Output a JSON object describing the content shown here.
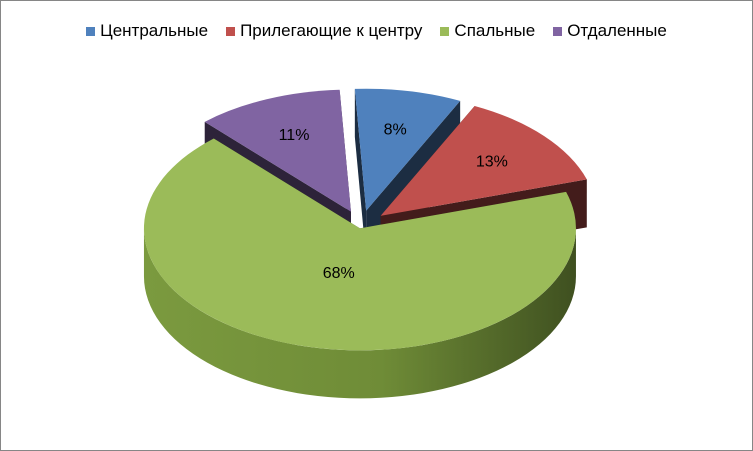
{
  "chart_data": {
    "type": "pie",
    "style": "3d-exploded",
    "categories": [
      "Центральные",
      "Прилегающие к центру",
      "Спальные",
      "Отдаленные"
    ],
    "values": [
      8,
      13,
      68,
      11
    ],
    "value_labels": [
      "8%",
      "13%",
      "68%",
      "11%"
    ],
    "colors": [
      "#4F81BD",
      "#C0504D",
      "#9BBB59",
      "#8064A2"
    ],
    "legend_position": "top"
  }
}
